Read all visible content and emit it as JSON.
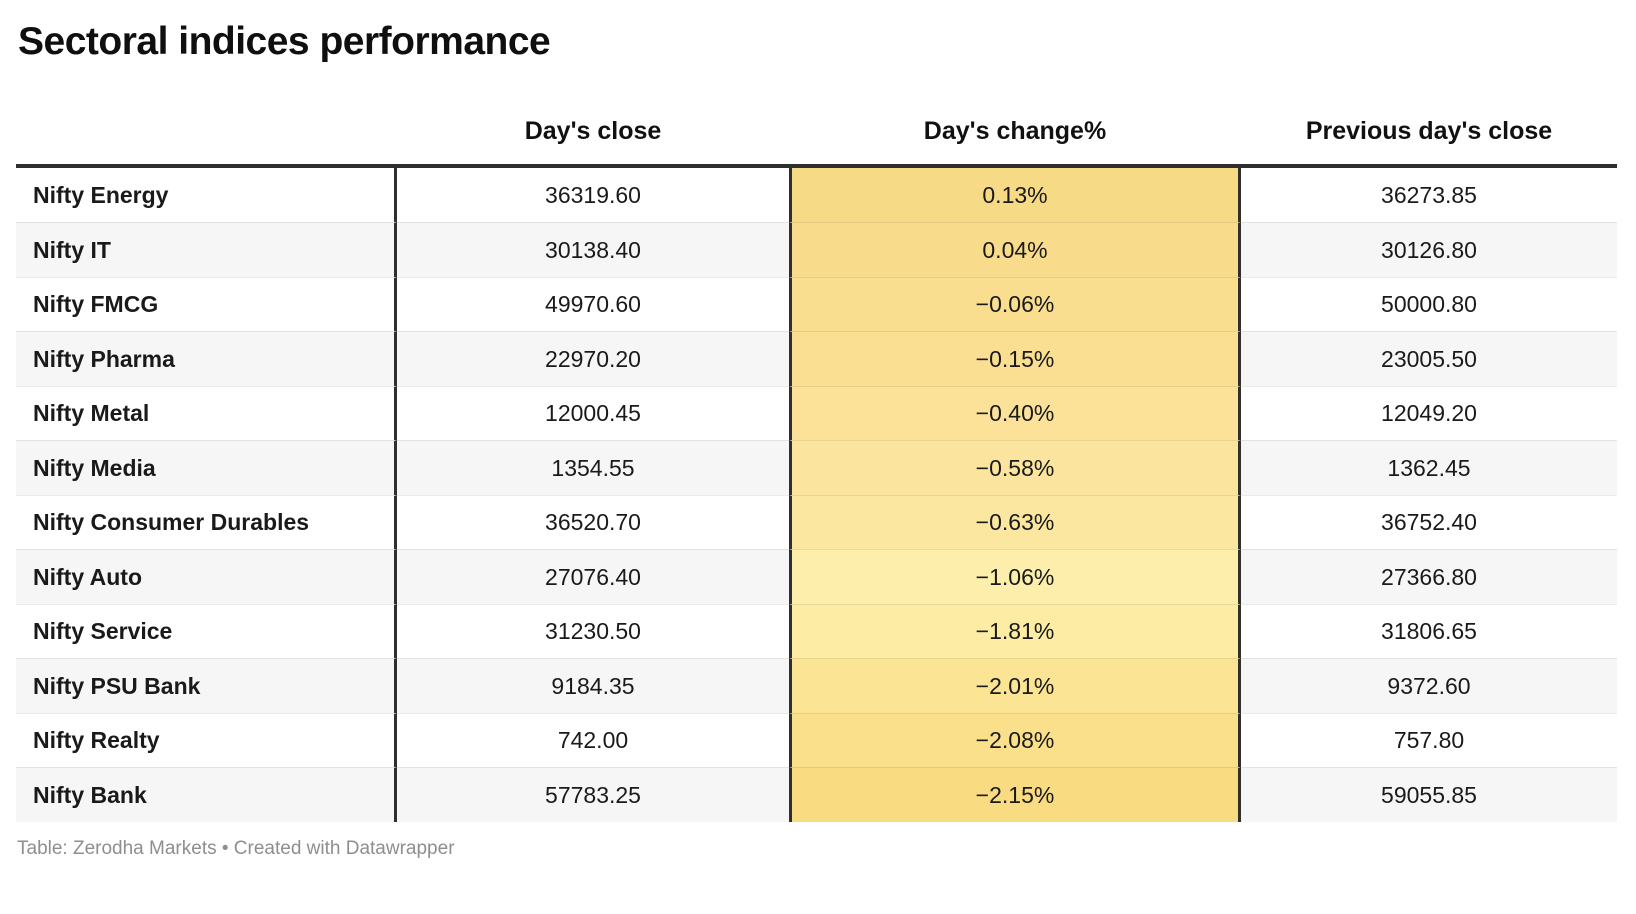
{
  "title": "Sectoral indices performance",
  "table": {
    "columns": [
      {
        "label": ""
      },
      {
        "label": "Day's close"
      },
      {
        "label": "Day's change%"
      },
      {
        "label": "Previous day's close"
      }
    ],
    "rows": [
      {
        "name": "Nifty Energy",
        "close": "36319.60",
        "change": "0.13%",
        "prev": "36273.85",
        "bg": "#f7da86"
      },
      {
        "name": "Nifty IT",
        "close": "30138.40",
        "change": "0.04%",
        "prev": "30126.80",
        "bg": "#f8dc8b"
      },
      {
        "name": "Nifty FMCG",
        "close": "49970.60",
        "change": "−0.06%",
        "prev": "50000.80",
        "bg": "#f9de8f"
      },
      {
        "name": "Nifty Pharma",
        "close": "22970.20",
        "change": "−0.15%",
        "prev": "23005.50",
        "bg": "#fadf92"
      },
      {
        "name": "Nifty Metal",
        "close": "12000.45",
        "change": "−0.40%",
        "prev": "12049.20",
        "bg": "#fbe298"
      },
      {
        "name": "Nifty Media",
        "close": "1354.55",
        "change": "−0.58%",
        "prev": "1362.45",
        "bg": "#fbe59e"
      },
      {
        "name": "Nifty Consumer Durables",
        "close": "36520.70",
        "change": "−0.63%",
        "prev": "36752.40",
        "bg": "#fce7a1"
      },
      {
        "name": "Nifty Auto",
        "close": "27076.40",
        "change": "−1.06%",
        "prev": "27366.80",
        "bg": "#fdeeab"
      },
      {
        "name": "Nifty Service",
        "close": "31230.50",
        "change": "−1.81%",
        "prev": "31806.65",
        "bg": "#fdeca4"
      },
      {
        "name": "Nifty PSU Bank",
        "close": "9184.35",
        "change": "−2.01%",
        "prev": "9372.60",
        "bg": "#fbe493"
      },
      {
        "name": "Nifty Realty",
        "close": "742.00",
        "change": "−2.08%",
        "prev": "757.80",
        "bg": "#fae08a"
      },
      {
        "name": "Nifty Bank",
        "close": "57783.25",
        "change": "−2.15%",
        "prev": "59055.85",
        "bg": "#f9dc81"
      }
    ]
  },
  "footer": {
    "credit": "Table: Zerodha Markets • Created with Datawrapper"
  },
  "colors": {
    "border_dark": "#2f2f2f",
    "row_alt_bg": "#f6f6f6",
    "separator": "rgba(0,0,0,0.08)",
    "text": "#1a1a1a",
    "footer_text": "#8e8e8e"
  },
  "chart_data": {
    "type": "table",
    "title": "Sectoral indices performance",
    "columns": [
      "",
      "Day's close",
      "Day's change%",
      "Previous day's close"
    ],
    "rows": [
      [
        "Nifty Energy",
        36319.6,
        0.13,
        36273.85
      ],
      [
        "Nifty IT",
        30138.4,
        0.04,
        30126.8
      ],
      [
        "Nifty FMCG",
        49970.6,
        -0.06,
        50000.8
      ],
      [
        "Nifty Pharma",
        22970.2,
        -0.15,
        23005.5
      ],
      [
        "Nifty Metal",
        12000.45,
        -0.4,
        12049.2
      ],
      [
        "Nifty Media",
        1354.55,
        -0.58,
        1362.45
      ],
      [
        "Nifty Consumer Durables",
        36520.7,
        -0.63,
        36752.4
      ],
      [
        "Nifty Auto",
        27076.4,
        -1.06,
        27366.8
      ],
      [
        "Nifty Service",
        31230.5,
        -1.81,
        31806.65
      ],
      [
        "Nifty PSU Bank",
        9184.35,
        -2.01,
        9372.6
      ],
      [
        "Nifty Realty",
        742.0,
        -2.08,
        757.8
      ],
      [
        "Nifty Bank",
        57783.25,
        -2.15,
        59055.85
      ]
    ],
    "notes": "Day's change% column shaded with a yellow-gold heatmap: darkest at the range extremes (0.13% and −2.15%), lightest near −1.06%"
  }
}
